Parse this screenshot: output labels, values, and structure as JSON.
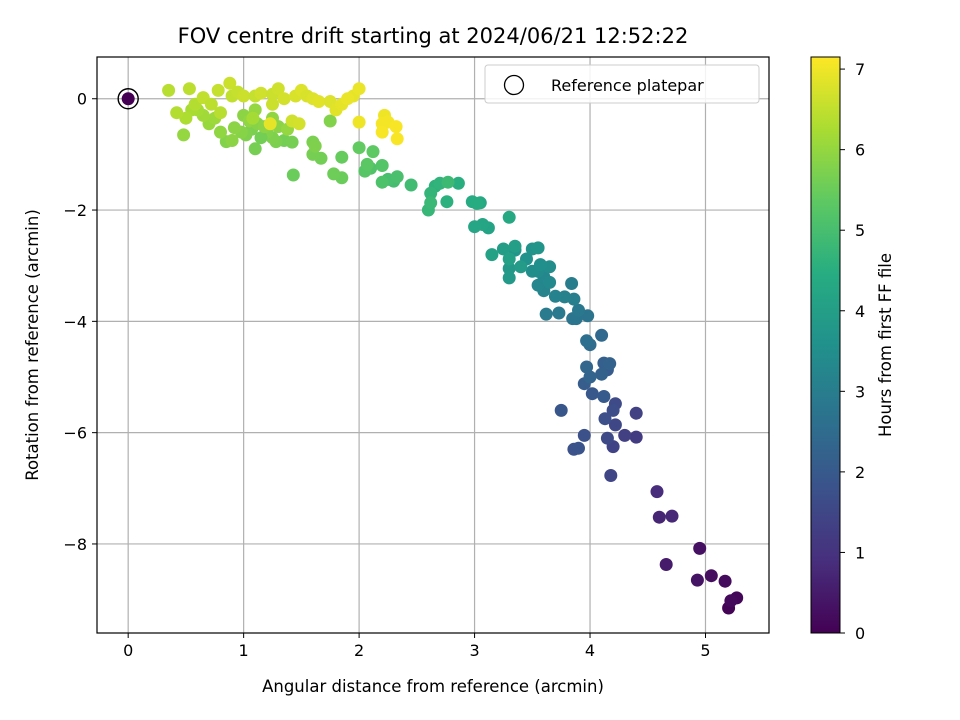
{
  "chart_data": {
    "type": "scatter",
    "title": "FOV centre drift starting at 2024/06/21 12:52:22",
    "xlabel": "Angular distance from reference (arcmin)",
    "ylabel": "Rotation from reference (arcmin)",
    "xlim": [
      -0.27,
      5.55
    ],
    "ylim": [
      -9.6,
      0.75
    ],
    "xticks": [
      0,
      1,
      2,
      3,
      4,
      5
    ],
    "yticks": [
      0,
      -2,
      -4,
      -6,
      -8
    ],
    "grid": true,
    "legend": {
      "position": "top-right",
      "entries": [
        "Reference platepar"
      ]
    },
    "colorbar": {
      "label": "Hours from first FF file",
      "range": [
        0,
        7.15
      ],
      "ticks": [
        0,
        1,
        2,
        3,
        4,
        5,
        6,
        7
      ],
      "colormap": "viridis"
    },
    "reference": {
      "x": 0,
      "y": 0,
      "hours": 0
    },
    "points": [
      [
        5.2,
        -9.15,
        0.05
      ],
      [
        5.27,
        -8.97,
        0.1
      ],
      [
        5.22,
        -9.02,
        0.15
      ],
      [
        5.17,
        -8.67,
        0.2
      ],
      [
        5.05,
        -8.57,
        0.25
      ],
      [
        4.95,
        -8.08,
        0.3
      ],
      [
        4.93,
        -8.65,
        0.35
      ],
      [
        4.66,
        -8.37,
        0.5
      ],
      [
        4.6,
        -7.52,
        0.7
      ],
      [
        4.71,
        -7.5,
        0.75
      ],
      [
        4.58,
        -7.06,
        0.85
      ],
      [
        4.4,
        -6.08,
        1.2
      ],
      [
        4.3,
        -6.05,
        1.3
      ],
      [
        4.4,
        -5.65,
        1.35
      ],
      [
        4.2,
        -6.25,
        1.4
      ],
      [
        4.18,
        -6.77,
        1.45
      ],
      [
        4.22,
        -5.86,
        1.5
      ],
      [
        4.15,
        -6.1,
        1.55
      ],
      [
        4.22,
        -5.48,
        1.6
      ],
      [
        4.2,
        -5.6,
        1.65
      ],
      [
        4.13,
        -5.75,
        1.7
      ],
      [
        3.95,
        -6.05,
        1.75
      ],
      [
        3.86,
        -6.3,
        1.8
      ],
      [
        3.9,
        -6.28,
        1.85
      ],
      [
        3.75,
        -5.6,
        1.9
      ],
      [
        4.02,
        -5.3,
        1.95
      ],
      [
        4.12,
        -5.35,
        2.0
      ],
      [
        4.15,
        -4.87,
        2.05
      ],
      [
        3.95,
        -5.12,
        2.1
      ],
      [
        4.12,
        -4.75,
        2.15
      ],
      [
        4.1,
        -4.95,
        2.2
      ],
      [
        4.17,
        -4.76,
        2.25
      ],
      [
        4.0,
        -5.0,
        2.3
      ],
      [
        3.97,
        -4.82,
        2.35
      ],
      [
        4.1,
        -4.25,
        2.4
      ],
      [
        4.0,
        -4.42,
        2.5
      ],
      [
        3.97,
        -4.35,
        2.6
      ],
      [
        3.98,
        -3.9,
        2.7
      ],
      [
        3.88,
        -3.95,
        2.75
      ],
      [
        3.85,
        -3.95,
        2.8
      ],
      [
        3.9,
        -3.8,
        2.85
      ],
      [
        3.73,
        -3.85,
        2.9
      ],
      [
        3.62,
        -3.87,
        2.95
      ],
      [
        3.84,
        -3.32,
        3.0
      ],
      [
        3.86,
        -3.6,
        3.05
      ],
      [
        3.78,
        -3.56,
        3.1
      ],
      [
        3.7,
        -3.55,
        3.15
      ],
      [
        3.6,
        -3.45,
        3.2
      ],
      [
        3.55,
        -3.35,
        3.25
      ],
      [
        3.6,
        -3.2,
        3.3
      ],
      [
        3.65,
        -3.3,
        3.35
      ],
      [
        3.55,
        -3.1,
        3.4
      ],
      [
        3.65,
        -3.02,
        3.45
      ],
      [
        3.5,
        -3.1,
        3.5
      ],
      [
        3.57,
        -2.98,
        3.55
      ],
      [
        3.45,
        -2.88,
        3.6
      ],
      [
        3.5,
        -2.7,
        3.65
      ],
      [
        3.55,
        -2.68,
        3.7
      ],
      [
        3.35,
        -2.72,
        3.75
      ],
      [
        3.3,
        -3.05,
        3.8
      ],
      [
        3.3,
        -3.22,
        3.85
      ],
      [
        3.4,
        -3.02,
        3.9
      ],
      [
        3.25,
        -2.7,
        3.95
      ],
      [
        3.35,
        -2.65,
        4.0
      ],
      [
        3.3,
        -2.88,
        4.05
      ],
      [
        3.15,
        -2.8,
        4.1
      ],
      [
        3.12,
        -2.32,
        4.15
      ],
      [
        3.07,
        -2.26,
        4.2
      ],
      [
        3.0,
        -2.3,
        4.25
      ],
      [
        3.3,
        -2.13,
        4.3
      ],
      [
        3.05,
        -1.87,
        4.35
      ],
      [
        2.98,
        -1.85,
        4.4
      ],
      [
        3.02,
        -1.88,
        4.45
      ],
      [
        2.86,
        -1.52,
        4.5
      ],
      [
        2.76,
        -1.85,
        4.55
      ],
      [
        2.66,
        -1.57,
        4.6
      ],
      [
        2.7,
        -1.52,
        4.65
      ],
      [
        2.62,
        -1.7,
        4.7
      ],
      [
        2.6,
        -2.0,
        4.75
      ],
      [
        2.62,
        -1.87,
        4.8
      ],
      [
        2.77,
        -1.5,
        4.85
      ],
      [
        2.45,
        -1.55,
        4.9
      ],
      [
        2.3,
        -1.48,
        4.95
      ],
      [
        2.25,
        -1.45,
        5.0
      ],
      [
        2.33,
        -1.4,
        5.05
      ],
      [
        2.2,
        -1.5,
        5.1
      ],
      [
        2.1,
        -1.25,
        5.15
      ],
      [
        2.2,
        -1.2,
        5.2
      ],
      [
        2.05,
        -1.3,
        5.25
      ],
      [
        2.07,
        -1.18,
        5.3
      ],
      [
        2.12,
        -0.95,
        5.35
      ],
      [
        2.0,
        -0.88,
        5.4
      ],
      [
        1.85,
        -1.05,
        5.45
      ],
      [
        1.85,
        -1.42,
        5.5
      ],
      [
        1.78,
        -1.35,
        5.55
      ],
      [
        1.67,
        -1.07,
        5.6
      ],
      [
        1.6,
        -1.0,
        5.65
      ],
      [
        1.6,
        -0.78,
        5.7
      ],
      [
        1.62,
        -0.85,
        5.75
      ],
      [
        1.75,
        -0.4,
        5.8
      ],
      [
        1.43,
        -1.37,
        5.5
      ],
      [
        1.35,
        -0.75,
        5.6
      ],
      [
        1.42,
        -0.78,
        5.65
      ],
      [
        1.28,
        -0.77,
        5.7
      ],
      [
        1.25,
        -0.7,
        5.75
      ],
      [
        1.2,
        -0.6,
        5.8
      ],
      [
        1.1,
        -0.9,
        5.65
      ],
      [
        1.15,
        -0.7,
        5.6
      ],
      [
        1.07,
        -0.55,
        5.7
      ],
      [
        1.02,
        -0.65,
        5.75
      ],
      [
        0.98,
        -0.6,
        5.85
      ],
      [
        0.92,
        -0.52,
        5.9
      ],
      [
        0.85,
        -0.77,
        5.8
      ],
      [
        0.8,
        -0.6,
        5.95
      ],
      [
        0.9,
        -0.75,
        5.9
      ],
      [
        1.0,
        -0.3,
        5.9
      ],
      [
        1.05,
        -0.4,
        5.95
      ],
      [
        1.1,
        -0.2,
        6.0
      ],
      [
        1.12,
        -0.45,
        5.85
      ],
      [
        1.18,
        -0.5,
        5.9
      ],
      [
        1.25,
        -0.35,
        5.95
      ],
      [
        1.3,
        -0.5,
        5.9
      ],
      [
        1.38,
        -0.55,
        6.0
      ],
      [
        0.7,
        -0.45,
        6.05
      ],
      [
        0.75,
        -0.35,
        6.1
      ],
      [
        0.65,
        -0.3,
        6.15
      ],
      [
        0.6,
        -0.2,
        6.2
      ],
      [
        0.55,
        -0.2,
        6.25
      ],
      [
        0.5,
        -0.35,
        6.3
      ],
      [
        0.48,
        -0.65,
        6.0
      ],
      [
        0.42,
        -0.25,
        6.35
      ],
      [
        0.35,
        0.15,
        6.4
      ],
      [
        0.53,
        0.18,
        6.45
      ],
      [
        0.58,
        -0.1,
        6.35
      ],
      [
        0.65,
        0.02,
        6.5
      ],
      [
        0.72,
        -0.1,
        6.45
      ],
      [
        0.78,
        0.15,
        6.55
      ],
      [
        0.88,
        0.28,
        6.6
      ],
      [
        0.9,
        0.05,
        6.5
      ],
      [
        0.95,
        0.12,
        6.55
      ],
      [
        1.0,
        0.05,
        6.6
      ],
      [
        1.1,
        0.05,
        6.55
      ],
      [
        1.15,
        0.1,
        6.65
      ],
      [
        1.25,
        0.08,
        6.6
      ],
      [
        1.3,
        0.18,
        6.65
      ],
      [
        1.35,
        0.0,
        6.7
      ],
      [
        1.25,
        -0.1,
        6.6
      ],
      [
        1.42,
        -0.4,
        6.65
      ],
      [
        1.48,
        -0.45,
        6.7
      ],
      [
        1.45,
        0.05,
        6.75
      ],
      [
        1.5,
        0.15,
        6.8
      ],
      [
        1.55,
        0.05,
        6.75
      ],
      [
        1.6,
        0.0,
        6.8
      ],
      [
        1.65,
        -0.05,
        6.85
      ],
      [
        1.75,
        -0.05,
        6.8
      ],
      [
        1.8,
        -0.2,
        6.85
      ],
      [
        1.85,
        -0.1,
        6.9
      ],
      [
        1.95,
        0.05,
        6.9
      ],
      [
        2.0,
        0.18,
        6.95
      ],
      [
        1.9,
        0.0,
        6.95
      ],
      [
        2.0,
        -0.42,
        7.0
      ],
      [
        2.22,
        -0.3,
        7.0
      ],
      [
        2.25,
        -0.42,
        7.05
      ],
      [
        2.2,
        -0.45,
        7.05
      ],
      [
        2.32,
        -0.5,
        7.1
      ],
      [
        2.33,
        -0.72,
        7.1
      ],
      [
        2.2,
        -0.6,
        7.08
      ],
      [
        1.23,
        -0.45,
        6.9
      ],
      [
        0.8,
        -0.25,
        6.4
      ],
      [
        1.08,
        -0.35,
        6.2
      ]
    ]
  }
}
